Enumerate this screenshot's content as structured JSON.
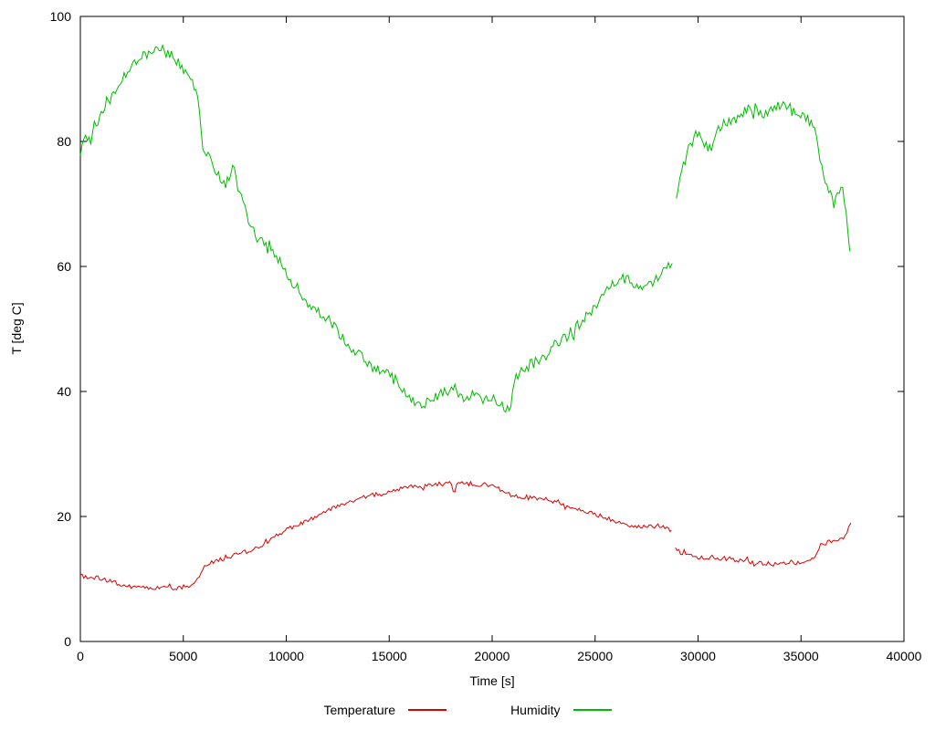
{
  "chart_data": {
    "type": "line",
    "title": "",
    "xlabel": "Time [s]",
    "ylabel": "T [deg C]",
    "xlim": [
      0,
      40000
    ],
    "ylim": [
      0,
      100
    ],
    "x_ticks": [
      0,
      5000,
      10000,
      15000,
      20000,
      25000,
      30000,
      35000,
      40000
    ],
    "y_ticks": [
      0,
      20,
      40,
      60,
      80,
      100
    ],
    "grid": false,
    "legend_position": "bottom-center",
    "series": [
      {
        "name": "Temperature",
        "color": "#dd0000",
        "noise": 0.35,
        "segments": [
          [
            [
              0,
              10.5
            ],
            [
              300,
              10.3
            ],
            [
              800,
              10.2
            ],
            [
              1200,
              9.8
            ],
            [
              1800,
              9.3
            ],
            [
              2200,
              9.0
            ],
            [
              2600,
              8.6
            ],
            [
              3000,
              8.5
            ],
            [
              3600,
              8.5
            ],
            [
              4200,
              8.5
            ],
            [
              4800,
              8.6
            ],
            [
              5400,
              9.0
            ],
            [
              5700,
              10.0
            ],
            [
              5900,
              11.5
            ],
            [
              6100,
              12.2
            ],
            [
              6400,
              12.6
            ],
            [
              6800,
              13.2
            ],
            [
              7200,
              13.3
            ],
            [
              7600,
              14.0
            ],
            [
              7900,
              14.6
            ],
            [
              8100,
              14.0
            ],
            [
              8500,
              14.8
            ],
            [
              9000,
              15.8
            ],
            [
              9500,
              16.8
            ],
            [
              10000,
              17.8
            ],
            [
              10500,
              18.6
            ],
            [
              11000,
              19.3
            ],
            [
              11500,
              20.0
            ],
            [
              12000,
              21.0
            ],
            [
              12500,
              21.8
            ],
            [
              13000,
              22.3
            ],
            [
              13500,
              22.8
            ],
            [
              14000,
              23.3
            ],
            [
              14500,
              23.6
            ],
            [
              15000,
              24.0
            ],
            [
              15500,
              24.5
            ],
            [
              16000,
              24.8
            ],
            [
              16500,
              24.7
            ],
            [
              17000,
              25.0
            ],
            [
              17500,
              25.2
            ],
            [
              18000,
              25.3
            ],
            [
              18150,
              23.6
            ],
            [
              18300,
              25.2
            ],
            [
              18600,
              25.3
            ],
            [
              19000,
              25.2
            ],
            [
              19500,
              25.1
            ],
            [
              20000,
              25.0
            ],
            [
              20300,
              24.6
            ],
            [
              20600,
              23.8
            ],
            [
              21000,
              23.4
            ],
            [
              21500,
              23.2
            ],
            [
              22000,
              23.0
            ],
            [
              22500,
              22.8
            ],
            [
              23000,
              22.4
            ],
            [
              23500,
              22.0
            ],
            [
              24000,
              21.4
            ],
            [
              24500,
              20.9
            ],
            [
              25000,
              20.4
            ],
            [
              25500,
              19.8
            ],
            [
              26000,
              19.2
            ],
            [
              26300,
              18.8
            ],
            [
              26700,
              18.6
            ],
            [
              27000,
              18.5
            ],
            [
              27500,
              18.4
            ],
            [
              28000,
              18.5
            ],
            [
              28400,
              18.2
            ],
            [
              28700,
              17.8
            ]
          ],
          [
            [
              28900,
              14.7
            ],
            [
              29200,
              14.2
            ],
            [
              29600,
              13.8
            ],
            [
              30000,
              13.6
            ],
            [
              30400,
              13.4
            ],
            [
              30800,
              13.5
            ],
            [
              31200,
              13.3
            ],
            [
              31600,
              13.2
            ],
            [
              32000,
              13.0
            ],
            [
              32500,
              12.7
            ],
            [
              33000,
              12.5
            ],
            [
              33500,
              12.4
            ],
            [
              34000,
              12.4
            ],
            [
              34500,
              12.5
            ],
            [
              35000,
              12.6
            ],
            [
              35400,
              12.7
            ],
            [
              35700,
              13.5
            ],
            [
              36000,
              15.3
            ],
            [
              36300,
              16.0
            ],
            [
              36600,
              16.3
            ],
            [
              37000,
              16.4
            ],
            [
              37200,
              16.8
            ],
            [
              37400,
              19.0
            ]
          ]
        ]
      },
      {
        "name": "Humidity",
        "color": "#00bb00",
        "noise": 0.9,
        "segments": [
          [
            [
              0,
              78.5
            ],
            [
              200,
              80.5
            ],
            [
              400,
              81.0
            ],
            [
              700,
              82.5
            ],
            [
              1000,
              84.0
            ],
            [
              1300,
              86.0
            ],
            [
              1600,
              87.5
            ],
            [
              2000,
              89.5
            ],
            [
              2400,
              91.5
            ],
            [
              2800,
              93.0
            ],
            [
              3200,
              94.0
            ],
            [
              3600,
              94.5
            ],
            [
              4000,
              94.5
            ],
            [
              4400,
              94.0
            ],
            [
              4800,
              92.5
            ],
            [
              5200,
              90.5
            ],
            [
              5500,
              89.0
            ],
            [
              5700,
              87.0
            ],
            [
              5900,
              80.0
            ],
            [
              6100,
              78.0
            ],
            [
              6400,
              76.5
            ],
            [
              6700,
              74.5
            ],
            [
              7000,
              73.0
            ],
            [
              7200,
              74.0
            ],
            [
              7400,
              76.0
            ],
            [
              7600,
              73.5
            ],
            [
              7900,
              70.0
            ],
            [
              8200,
              66.5
            ],
            [
              8500,
              65.0
            ],
            [
              8800,
              64.0
            ],
            [
              9100,
              62.5
            ],
            [
              9400,
              62.0
            ],
            [
              9700,
              60.5
            ],
            [
              10000,
              58.5
            ],
            [
              10300,
              57.5
            ],
            [
              10600,
              55.5
            ],
            [
              11000,
              54.0
            ],
            [
              11400,
              53.0
            ],
            [
              11800,
              52.5
            ],
            [
              12200,
              51.0
            ],
            [
              12600,
              49.0
            ],
            [
              13000,
              47.5
            ],
            [
              13400,
              46.5
            ],
            [
              13800,
              45.0
            ],
            [
              14200,
              44.0
            ],
            [
              14600,
              43.0
            ],
            [
              15000,
              42.5
            ],
            [
              15400,
              41.5
            ],
            [
              15800,
              40.0
            ],
            [
              16200,
              38.5
            ],
            [
              16600,
              38.0
            ],
            [
              17000,
              38.5
            ],
            [
              17400,
              39.5
            ],
            [
              17800,
              40.0
            ],
            [
              18200,
              40.5
            ],
            [
              18600,
              39.0
            ],
            [
              19000,
              39.5
            ],
            [
              19400,
              38.5
            ],
            [
              19800,
              39.0
            ],
            [
              20200,
              38.5
            ],
            [
              20600,
              37.0
            ],
            [
              20900,
              38.0
            ],
            [
              21100,
              42.0
            ],
            [
              21500,
              43.5
            ],
            [
              22000,
              44.5
            ],
            [
              22500,
              45.5
            ],
            [
              23000,
              47.0
            ],
            [
              23500,
              48.5
            ],
            [
              24000,
              50.0
            ],
            [
              24500,
              52.0
            ],
            [
              25000,
              53.5
            ],
            [
              25300,
              55.0
            ],
            [
              25600,
              56.5
            ],
            [
              26000,
              57.5
            ],
            [
              26300,
              58.0
            ],
            [
              26600,
              58.0
            ],
            [
              27000,
              57.0
            ],
            [
              27400,
              56.5
            ],
            [
              27800,
              57.5
            ],
            [
              28200,
              58.5
            ],
            [
              28500,
              59.5
            ],
            [
              28750,
              60.5
            ]
          ],
          [
            [
              28950,
              71.0
            ],
            [
              29100,
              73.5
            ],
            [
              29300,
              76.0
            ],
            [
              29500,
              78.5
            ],
            [
              29700,
              80.0
            ],
            [
              29900,
              81.0
            ],
            [
              30100,
              81.0
            ],
            [
              30300,
              80.0
            ],
            [
              30500,
              78.5
            ],
            [
              30700,
              79.5
            ],
            [
              30900,
              81.5
            ],
            [
              31100,
              82.5
            ],
            [
              31400,
              83.0
            ],
            [
              31700,
              83.0
            ],
            [
              32000,
              84.0
            ],
            [
              32300,
              85.0
            ],
            [
              32600,
              85.5
            ],
            [
              32900,
              85.0
            ],
            [
              33200,
              84.5
            ],
            [
              33500,
              85.0
            ],
            [
              33800,
              85.5
            ],
            [
              34100,
              86.0
            ],
            [
              34400,
              85.5
            ],
            [
              34700,
              84.5
            ],
            [
              35000,
              84.0
            ],
            [
              35300,
              83.5
            ],
            [
              35600,
              83.0
            ],
            [
              35800,
              80.0
            ],
            [
              36000,
              76.0
            ],
            [
              36200,
              73.5
            ],
            [
              36400,
              71.5
            ],
            [
              36600,
              70.0
            ],
            [
              36800,
              71.5
            ],
            [
              37000,
              72.5
            ],
            [
              37100,
              71.0
            ],
            [
              37250,
              66.0
            ],
            [
              37400,
              62.5
            ]
          ]
        ]
      }
    ]
  }
}
